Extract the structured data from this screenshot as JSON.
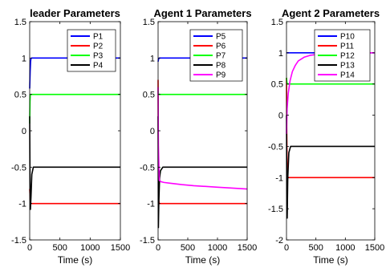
{
  "chart_data": [
    {
      "type": "line",
      "title": "leader Parameters",
      "xlabel": "Time (s)",
      "ylabel": "",
      "xlim": [
        0,
        1500
      ],
      "ylim": [
        -1.5,
        1.5
      ],
      "xticks": [
        0,
        500,
        1000,
        1500
      ],
      "yticks": [
        -1.5,
        -1,
        -0.5,
        0,
        0.5,
        1,
        1.5
      ],
      "xtick_labels": [
        "0",
        "500",
        "1000",
        "1500"
      ],
      "ytick_labels": [
        "-1.5",
        "-1",
        "-0.5",
        "0",
        "0.5",
        "1",
        "1.5"
      ],
      "legend_position": "top-right",
      "series": [
        {
          "name": "P1",
          "color": "#0000ff",
          "x": [
            0,
            8,
            15,
            20,
            30,
            1500
          ],
          "y": [
            0.58,
            0.82,
            0.95,
            0.99,
            1.0,
            1.0
          ]
        },
        {
          "name": "P2",
          "color": "#ff0000",
          "x": [
            0,
            10,
            20,
            30,
            1500
          ],
          "y": [
            -0.8,
            -0.97,
            -1.0,
            -1.0,
            -1.0
          ]
        },
        {
          "name": "P3",
          "color": "#00ff00",
          "x": [
            0,
            5,
            10,
            20,
            1500
          ],
          "y": [
            0.1,
            0.4,
            0.5,
            0.5,
            0.5
          ]
        },
        {
          "name": "P4",
          "color": "#000000",
          "x": [
            0,
            5,
            12,
            22,
            35,
            60,
            1500
          ],
          "y": [
            0.2,
            -0.7,
            -1.08,
            -0.9,
            -0.6,
            -0.5,
            -0.5
          ]
        }
      ]
    },
    {
      "type": "line",
      "title": "Agent 1 Parameters",
      "xlabel": "Time (s)",
      "ylabel": "",
      "xlim": [
        0,
        1500
      ],
      "ylim": [
        -1.5,
        1.5
      ],
      "xticks": [
        0,
        500,
        1000,
        1500
      ],
      "yticks": [
        -1.5,
        -1,
        -0.5,
        0,
        0.5,
        1,
        1.5
      ],
      "xtick_labels": [
        "0",
        "500",
        "1000",
        "1500"
      ],
      "ytick_labels": [
        "-1.5",
        "-1",
        "-0.5",
        "0",
        "0.5",
        "1",
        "1.5"
      ],
      "legend_position": "top-right",
      "series": [
        {
          "name": "P5",
          "color": "#0000ff",
          "x": [
            0,
            10,
            20,
            30,
            1500
          ],
          "y": [
            0.95,
            0.99,
            1.0,
            1.0,
            1.0
          ]
        },
        {
          "name": "P6",
          "color": "#ff0000",
          "x": [
            0,
            5,
            10,
            20,
            1500
          ],
          "y": [
            0.7,
            -0.6,
            -0.95,
            -1.0,
            -1.0
          ]
        },
        {
          "name": "P7",
          "color": "#00ff00",
          "x": [
            0,
            8,
            15,
            1500
          ],
          "y": [
            0.55,
            0.5,
            0.5,
            0.5
          ]
        },
        {
          "name": "P8",
          "color": "#000000",
          "x": [
            0,
            5,
            12,
            25,
            40,
            80,
            1500
          ],
          "y": [
            0.2,
            -1.33,
            -1.0,
            -0.65,
            -0.55,
            -0.5,
            -0.5
          ]
        },
        {
          "name": "P9",
          "color": "#ff00ff",
          "x": [
            0,
            5,
            20,
            50,
            100,
            200,
            400,
            600,
            800,
            1000,
            1200,
            1500
          ],
          "y": [
            0.6,
            -0.2,
            -0.68,
            -0.7,
            -0.71,
            -0.72,
            -0.74,
            -0.755,
            -0.765,
            -0.775,
            -0.785,
            -0.8
          ]
        }
      ]
    },
    {
      "type": "line",
      "title": "Agent 2 Parameters",
      "xlabel": "Time (s)",
      "ylabel": "",
      "xlim": [
        0,
        1500
      ],
      "ylim": [
        -2,
        1.5
      ],
      "xticks": [
        0,
        500,
        1000,
        1500
      ],
      "yticks": [
        -2,
        -1.5,
        -1,
        -0.5,
        0,
        0.5,
        1,
        1.5
      ],
      "xtick_labels": [
        "0",
        "500",
        "1000",
        "1500"
      ],
      "ytick_labels": [
        "-2",
        "-1.5",
        "-1",
        "-0.5",
        "0",
        "0.5",
        "1",
        "1.5"
      ],
      "legend_position": "top-right",
      "series": [
        {
          "name": "P10",
          "color": "#0000ff",
          "x": [
            0,
            10,
            20,
            1500
          ],
          "y": [
            1.0,
            1.0,
            1.0,
            1.0
          ]
        },
        {
          "name": "P11",
          "color": "#ff0000",
          "x": [
            0,
            5,
            12,
            25,
            1500
          ],
          "y": [
            0.6,
            -0.3,
            -0.95,
            -1.0,
            -1.0
          ]
        },
        {
          "name": "P12",
          "color": "#00ff00",
          "x": [
            0,
            8,
            15,
            1500
          ],
          "y": [
            0.6,
            0.52,
            0.5,
            0.5
          ]
        },
        {
          "name": "P13",
          "color": "#000000",
          "x": [
            0,
            5,
            12,
            22,
            40,
            70,
            1500
          ],
          "y": [
            0.0,
            -1.2,
            -1.65,
            -1.0,
            -0.6,
            -0.5,
            -0.5
          ]
        },
        {
          "name": "P14",
          "color": "#ff00ff",
          "x": [
            0,
            10,
            30,
            60,
            100,
            150,
            200,
            300,
            400,
            600,
            800,
            1000,
            1500
          ],
          "y": [
            -0.3,
            0.1,
            0.35,
            0.55,
            0.7,
            0.8,
            0.87,
            0.93,
            0.96,
            0.985,
            0.995,
            1.0,
            1.0
          ]
        }
      ]
    }
  ]
}
